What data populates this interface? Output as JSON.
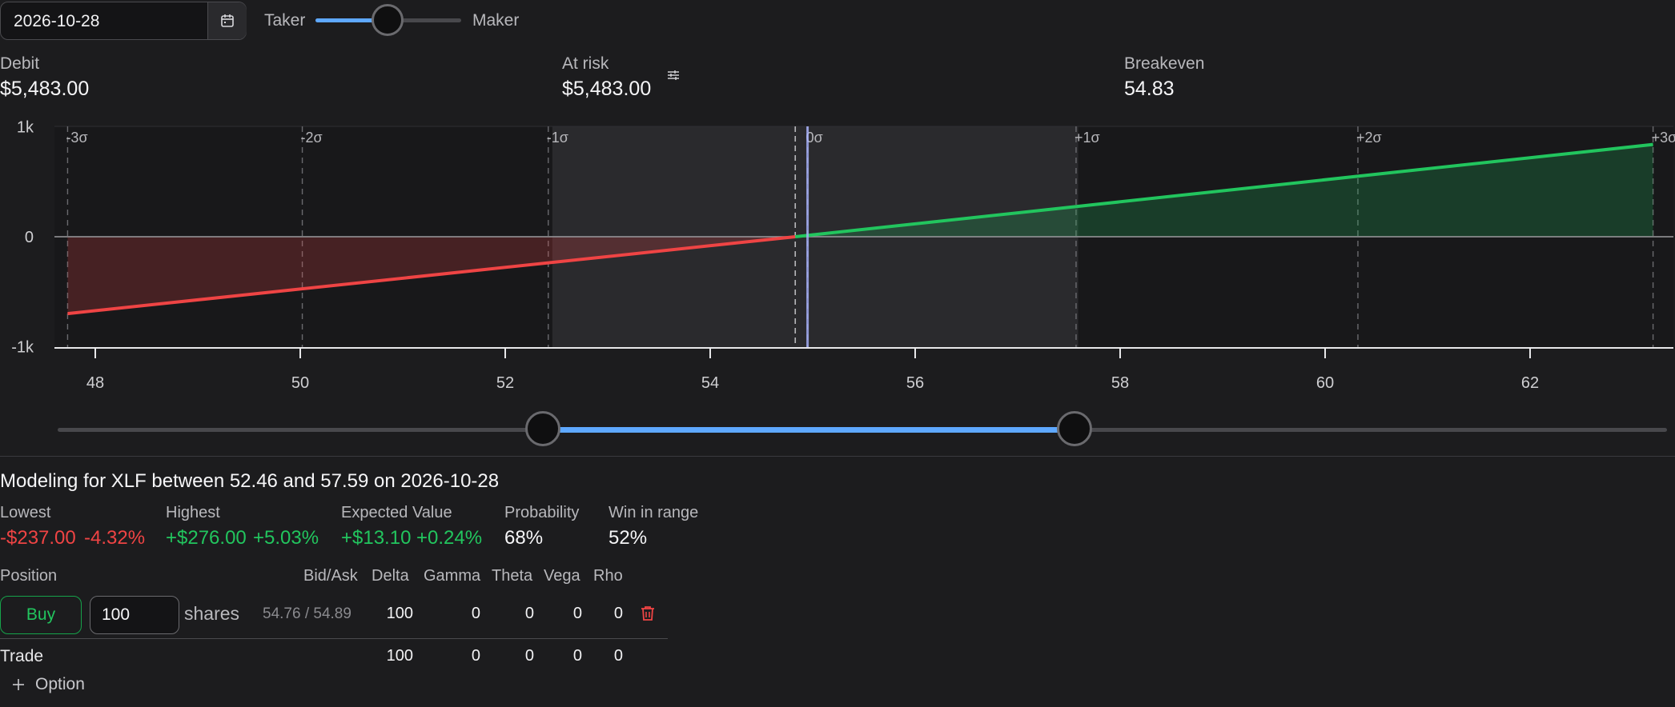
{
  "toolbar": {
    "date": "2026-10-28",
    "calendar_icon": "calendar-icon",
    "taker_label": "Taker",
    "maker_label": "Maker",
    "taker_maker_level": 0.5
  },
  "stats": {
    "debit_label": "Debit",
    "debit_value": "$5,483.00",
    "at_risk_label": "At risk",
    "at_risk_value": "$5,483.00",
    "settings_icon": "sliders-icon",
    "breakeven_label": "Breakeven",
    "breakeven_value": "54.83"
  },
  "chart_data": {
    "type": "area",
    "x": [
      47.73,
      54.83,
      63.2
    ],
    "y": [
      -700,
      0,
      840
    ],
    "xlim": [
      47.0,
      63.6
    ],
    "ylim": [
      -1000,
      1000
    ],
    "x_ticks": [
      "48",
      "50",
      "52",
      "54",
      "56",
      "58",
      "60",
      "62"
    ],
    "y_ticks": [
      "1k",
      "0",
      "-1k"
    ],
    "sigma_lines": [
      {
        "label": "-3σ",
        "x": 47.73
      },
      {
        "label": "-2σ",
        "x": 50.02
      },
      {
        "label": "-1σ",
        "x": 52.42
      },
      {
        "label": "0σ",
        "x": 54.95
      },
      {
        "label": "+1σ",
        "x": 57.57
      },
      {
        "label": "+2σ",
        "x": 60.32
      },
      {
        "label": "+3σ",
        "x": 63.2
      }
    ],
    "breakeven": 54.83,
    "current_price": 54.95,
    "range": [
      52.46,
      57.59
    ],
    "colors": {
      "loss": "#ef4444",
      "profit": "#22c55e"
    }
  },
  "modeling": {
    "title": "Modeling for XLF between 52.46 and 57.59 on 2026-10-28",
    "lowest_label": "Lowest",
    "lowest_value": "-$237.00",
    "lowest_pct": "-4.32%",
    "highest_label": "Highest",
    "highest_value": "+$276.00",
    "highest_pct": "+5.03%",
    "ev_label": "Expected Value",
    "ev_value": "+$13.10",
    "ev_pct": "+0.24%",
    "probability_label": "Probability",
    "probability_value": "68%",
    "win_label": "Win in range",
    "win_value": "52%"
  },
  "positions": {
    "headers": {
      "position": "Position",
      "bid_ask": "Bid/Ask",
      "delta": "Delta",
      "gamma": "Gamma",
      "theta": "Theta",
      "vega": "Vega",
      "rho": "Rho"
    },
    "row": {
      "action": "Buy",
      "quantity": "100",
      "unit": "shares",
      "bid_ask": "54.76 / 54.89",
      "delta": "100",
      "gamma": "0",
      "theta": "0",
      "vega": "0",
      "rho": "0",
      "delete_icon": "trash-icon"
    },
    "trade": {
      "label": "Trade",
      "delta": "100",
      "gamma": "0",
      "theta": "0",
      "vega": "0",
      "rho": "0"
    },
    "add_option_label": "Option",
    "add_icon": "plus-icon"
  }
}
